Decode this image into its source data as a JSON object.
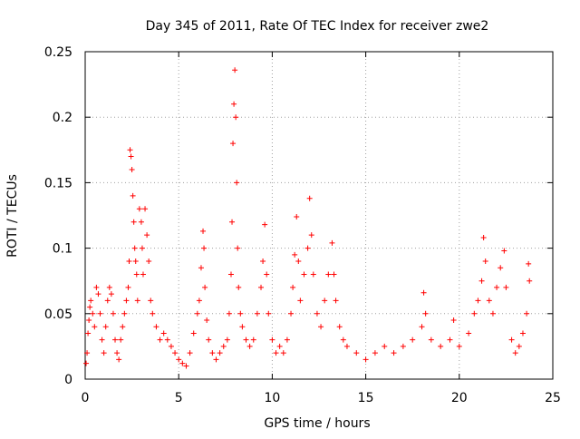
{
  "chart_data": {
    "type": "scatter",
    "title": "Day 345 of 2011, Rate Of TEC Index for receiver zwe2",
    "xlabel": "GPS time / hours",
    "ylabel": "ROTI / TECUs",
    "xlim": [
      0,
      25
    ],
    "ylim": [
      0,
      0.25
    ],
    "xticks": [
      0,
      5,
      10,
      15,
      20,
      25
    ],
    "xtick_labels": [
      "0",
      "5",
      "10",
      "15",
      "20",
      "25"
    ],
    "yticks": [
      0,
      0.05,
      0.1,
      0.15,
      0.2,
      0.25
    ],
    "ytick_labels": [
      "0",
      "0.05",
      "0.1",
      "0.15",
      "0.2",
      "0.25"
    ],
    "grid": true,
    "marker": "+",
    "color": "#ff0000",
    "series": [
      {
        "points": [
          [
            0.05,
            0.012
          ],
          [
            0.1,
            0.02
          ],
          [
            0.15,
            0.035
          ],
          [
            0.2,
            0.045
          ],
          [
            0.25,
            0.055
          ],
          [
            0.3,
            0.06
          ],
          [
            0.4,
            0.05
          ],
          [
            0.5,
            0.04
          ],
          [
            0.6,
            0.07
          ],
          [
            0.7,
            0.065
          ],
          [
            0.8,
            0.05
          ],
          [
            0.9,
            0.03
          ],
          [
            1.0,
            0.02
          ],
          [
            1.1,
            0.04
          ],
          [
            1.2,
            0.06
          ],
          [
            1.3,
            0.07
          ],
          [
            1.4,
            0.065
          ],
          [
            1.5,
            0.05
          ],
          [
            1.6,
            0.03
          ],
          [
            1.7,
            0.02
          ],
          [
            1.8,
            0.015
          ],
          [
            1.9,
            0.03
          ],
          [
            2.0,
            0.04
          ],
          [
            2.1,
            0.05
          ],
          [
            2.2,
            0.06
          ],
          [
            2.3,
            0.07
          ],
          [
            2.35,
            0.09
          ],
          [
            2.4,
            0.175
          ],
          [
            2.45,
            0.17
          ],
          [
            2.5,
            0.16
          ],
          [
            2.55,
            0.14
          ],
          [
            2.6,
            0.12
          ],
          [
            2.65,
            0.1
          ],
          [
            2.7,
            0.09
          ],
          [
            2.75,
            0.08
          ],
          [
            2.8,
            0.06
          ],
          [
            2.9,
            0.13
          ],
          [
            3.0,
            0.12
          ],
          [
            3.05,
            0.1
          ],
          [
            3.1,
            0.08
          ],
          [
            3.2,
            0.13
          ],
          [
            3.3,
            0.11
          ],
          [
            3.4,
            0.09
          ],
          [
            3.5,
            0.06
          ],
          [
            3.6,
            0.05
          ],
          [
            3.8,
            0.04
          ],
          [
            4.0,
            0.03
          ],
          [
            4.2,
            0.035
          ],
          [
            4.4,
            0.03
          ],
          [
            4.6,
            0.025
          ],
          [
            4.8,
            0.02
          ],
          [
            5.0,
            0.015
          ],
          [
            5.2,
            0.012
          ],
          [
            5.4,
            0.01
          ],
          [
            5.6,
            0.02
          ],
          [
            5.8,
            0.035
          ],
          [
            6.0,
            0.05
          ],
          [
            6.1,
            0.06
          ],
          [
            6.2,
            0.085
          ],
          [
            6.3,
            0.113
          ],
          [
            6.35,
            0.1
          ],
          [
            6.4,
            0.07
          ],
          [
            6.5,
            0.045
          ],
          [
            6.6,
            0.03
          ],
          [
            6.8,
            0.02
          ],
          [
            7.0,
            0.015
          ],
          [
            7.2,
            0.02
          ],
          [
            7.4,
            0.025
          ],
          [
            7.6,
            0.03
          ],
          [
            7.7,
            0.05
          ],
          [
            7.8,
            0.08
          ],
          [
            7.85,
            0.12
          ],
          [
            7.9,
            0.18
          ],
          [
            7.95,
            0.21
          ],
          [
            8.0,
            0.236
          ],
          [
            8.05,
            0.2
          ],
          [
            8.1,
            0.15
          ],
          [
            8.15,
            0.1
          ],
          [
            8.2,
            0.07
          ],
          [
            8.3,
            0.05
          ],
          [
            8.4,
            0.04
          ],
          [
            8.6,
            0.03
          ],
          [
            8.8,
            0.025
          ],
          [
            9.0,
            0.03
          ],
          [
            9.2,
            0.05
          ],
          [
            9.4,
            0.07
          ],
          [
            9.5,
            0.09
          ],
          [
            9.6,
            0.118
          ],
          [
            9.7,
            0.08
          ],
          [
            9.8,
            0.05
          ],
          [
            10.0,
            0.03
          ],
          [
            10.2,
            0.02
          ],
          [
            10.4,
            0.025
          ],
          [
            10.6,
            0.02
          ],
          [
            10.8,
            0.03
          ],
          [
            11.0,
            0.05
          ],
          [
            11.1,
            0.07
          ],
          [
            11.2,
            0.095
          ],
          [
            11.3,
            0.124
          ],
          [
            11.4,
            0.09
          ],
          [
            11.5,
            0.06
          ],
          [
            11.7,
            0.08
          ],
          [
            11.9,
            0.1
          ],
          [
            12.0,
            0.138
          ],
          [
            12.1,
            0.11
          ],
          [
            12.2,
            0.08
          ],
          [
            12.4,
            0.05
          ],
          [
            12.6,
            0.04
          ],
          [
            12.8,
            0.06
          ],
          [
            13.0,
            0.08
          ],
          [
            13.2,
            0.104
          ],
          [
            13.3,
            0.08
          ],
          [
            13.4,
            0.06
          ],
          [
            13.6,
            0.04
          ],
          [
            13.8,
            0.03
          ],
          [
            14.0,
            0.025
          ],
          [
            14.5,
            0.02
          ],
          [
            15.0,
            0.015
          ],
          [
            15.5,
            0.02
          ],
          [
            16.0,
            0.025
          ],
          [
            16.5,
            0.02
          ],
          [
            17.0,
            0.025
          ],
          [
            17.5,
            0.03
          ],
          [
            18.0,
            0.04
          ],
          [
            18.1,
            0.066
          ],
          [
            18.2,
            0.05
          ],
          [
            18.5,
            0.03
          ],
          [
            19.0,
            0.025
          ],
          [
            19.5,
            0.03
          ],
          [
            19.7,
            0.045
          ],
          [
            20.0,
            0.025
          ],
          [
            20.5,
            0.035
          ],
          [
            20.8,
            0.05
          ],
          [
            21.0,
            0.06
          ],
          [
            21.2,
            0.075
          ],
          [
            21.3,
            0.108
          ],
          [
            21.4,
            0.09
          ],
          [
            21.6,
            0.06
          ],
          [
            21.8,
            0.05
          ],
          [
            22.0,
            0.07
          ],
          [
            22.2,
            0.085
          ],
          [
            22.4,
            0.098
          ],
          [
            22.5,
            0.07
          ],
          [
            22.8,
            0.03
          ],
          [
            23.0,
            0.02
          ],
          [
            23.2,
            0.025
          ],
          [
            23.4,
            0.035
          ],
          [
            23.6,
            0.05
          ],
          [
            23.7,
            0.088
          ],
          [
            23.75,
            0.075
          ]
        ]
      }
    ]
  }
}
